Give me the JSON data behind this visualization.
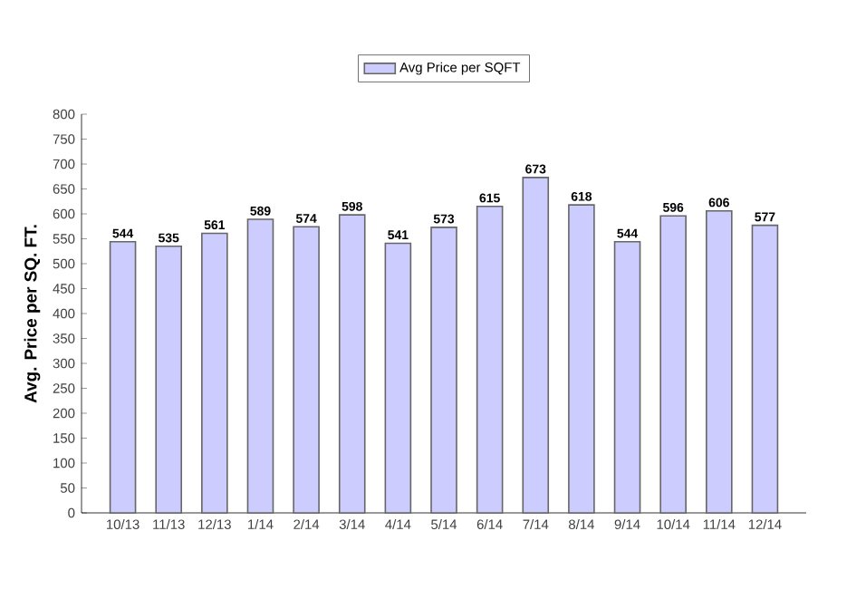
{
  "chart_data": {
    "type": "bar",
    "ylabel": "Avg. Price per SQ. FT.",
    "categories": [
      "10/13",
      "11/13",
      "12/13",
      "1/14",
      "2/14",
      "3/14",
      "4/14",
      "5/14",
      "6/14",
      "7/14",
      "8/14",
      "9/14",
      "10/14",
      "11/14",
      "12/14"
    ],
    "series": [
      {
        "name": "Avg Price per SQFT",
        "color": "#ccccff",
        "values": [
          544,
          535,
          561,
          589,
          574,
          598,
          541,
          573,
          615,
          673,
          618,
          544,
          596,
          606,
          577
        ]
      }
    ],
    "ylim": [
      0,
      800
    ],
    "yticks": [
      0,
      50,
      100,
      150,
      200,
      250,
      300,
      350,
      400,
      450,
      500,
      550,
      600,
      650,
      700,
      750,
      800
    ],
    "data_labels": true,
    "legend": "top",
    "grid": false
  }
}
